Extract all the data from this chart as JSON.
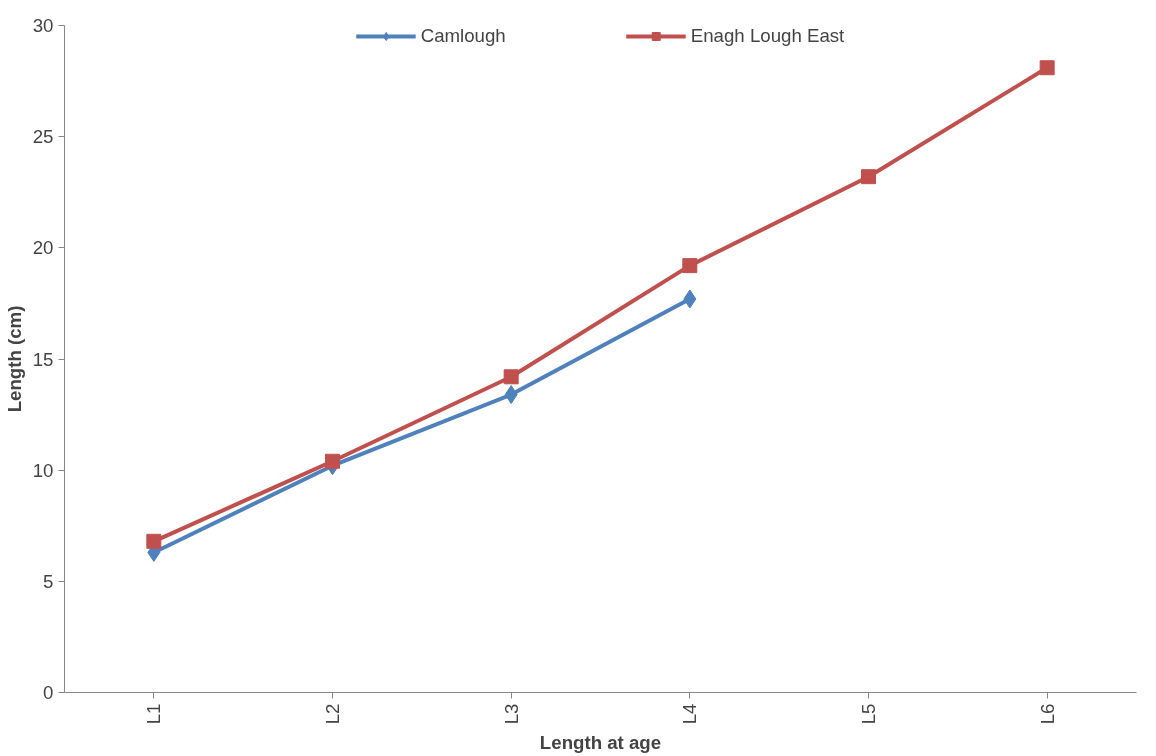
{
  "chart_data": {
    "type": "line",
    "xlabel": "Length at age",
    "ylabel": "Length (cm)",
    "categories": [
      "L1",
      "L2",
      "L3",
      "L4",
      "L5",
      "L6"
    ],
    "series": [
      {
        "name": "Camlough",
        "color": "#4f81bd",
        "marker": "diamond",
        "values": [
          6.3,
          10.2,
          13.4,
          17.7,
          null,
          null
        ]
      },
      {
        "name": "Enagh Lough East",
        "color": "#c0504d",
        "marker": "square",
        "values": [
          6.8,
          10.4,
          14.2,
          19.2,
          23.2,
          28.1
        ]
      }
    ],
    "ylim": [
      0,
      30
    ],
    "yticks": [
      0,
      5,
      10,
      15,
      20,
      25,
      30
    ],
    "grid": false,
    "legend": "top",
    "line_style": "solid"
  }
}
